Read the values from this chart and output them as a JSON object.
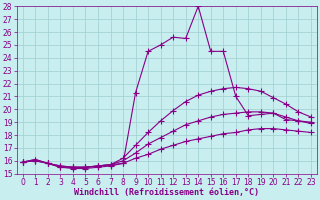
{
  "background_color": "#c8eef0",
  "grid_color": "#a0cece",
  "line_color": "#880088",
  "xlabel": "Windchill (Refroidissement éolien,°C)",
  "xlim": [
    -0.5,
    23.5
  ],
  "ylim": [
    15,
    28
  ],
  "yticks": [
    15,
    16,
    17,
    18,
    19,
    20,
    21,
    22,
    23,
    24,
    25,
    26,
    27,
    28
  ],
  "xticks": [
    0,
    1,
    2,
    3,
    4,
    5,
    6,
    7,
    8,
    9,
    10,
    11,
    12,
    13,
    14,
    15,
    16,
    17,
    18,
    19,
    20,
    21,
    22,
    23
  ],
  "curves": [
    {
      "x": [
        0,
        1,
        2,
        3,
        4,
        5,
        6,
        7,
        8,
        9,
        10,
        11,
        12,
        13,
        14,
        15,
        16,
        17,
        18,
        19,
        20,
        21,
        22,
        23
      ],
      "y": [
        15.9,
        16.1,
        15.8,
        15.5,
        15.4,
        15.4,
        15.5,
        15.6,
        15.8,
        21.3,
        24.5,
        25.0,
        25.6,
        25.5,
        28.0,
        24.5,
        24.5,
        21.0,
        19.5,
        19.6,
        19.7,
        19.2,
        19.1,
        19.0
      ]
    },
    {
      "x": [
        0,
        1,
        2,
        3,
        4,
        5,
        6,
        7,
        8,
        9,
        10,
        11,
        12,
        13,
        14,
        15,
        16,
        17,
        18,
        19,
        20,
        21,
        22,
        23
      ],
      "y": [
        15.9,
        16.1,
        15.8,
        15.5,
        15.5,
        15.5,
        15.6,
        15.7,
        16.2,
        17.2,
        18.2,
        19.1,
        19.9,
        20.6,
        21.1,
        21.4,
        21.6,
        21.7,
        21.6,
        21.4,
        20.9,
        20.4,
        19.8,
        19.4
      ]
    },
    {
      "x": [
        0,
        1,
        2,
        3,
        4,
        5,
        6,
        7,
        8,
        9,
        10,
        11,
        12,
        13,
        14,
        15,
        16,
        17,
        18,
        19,
        20,
        21,
        22,
        23
      ],
      "y": [
        15.9,
        16.0,
        15.8,
        15.6,
        15.5,
        15.5,
        15.6,
        15.7,
        16.0,
        16.6,
        17.3,
        17.8,
        18.3,
        18.8,
        19.1,
        19.4,
        19.6,
        19.7,
        19.8,
        19.8,
        19.7,
        19.4,
        19.1,
        18.9
      ]
    },
    {
      "x": [
        0,
        1,
        2,
        3,
        4,
        5,
        6,
        7,
        8,
        9,
        10,
        11,
        12,
        13,
        14,
        15,
        16,
        17,
        18,
        19,
        20,
        21,
        22,
        23
      ],
      "y": [
        15.9,
        16.0,
        15.8,
        15.6,
        15.5,
        15.5,
        15.6,
        15.7,
        15.8,
        16.2,
        16.5,
        16.9,
        17.2,
        17.5,
        17.7,
        17.9,
        18.1,
        18.2,
        18.4,
        18.5,
        18.5,
        18.4,
        18.3,
        18.2
      ]
    }
  ],
  "marker": "+",
  "marker_size": 4,
  "line_width": 0.8,
  "font_size": 6,
  "tick_font_size": 5.5
}
